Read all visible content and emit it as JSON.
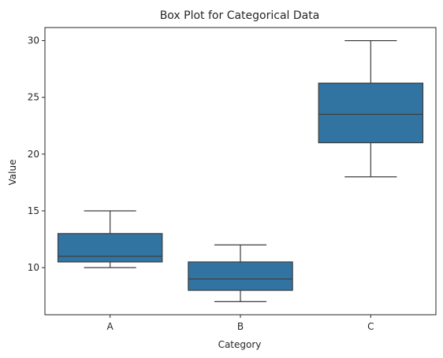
{
  "chart_data": {
    "type": "box",
    "title": "Box Plot for Categorical Data",
    "xlabel": "Category",
    "ylabel": "Value",
    "categories": [
      "A",
      "B",
      "C"
    ],
    "boxes": [
      {
        "category": "A",
        "whisker_low": 10,
        "q1": 10.5,
        "median": 11,
        "q3": 13,
        "whisker_high": 15
      },
      {
        "category": "B",
        "whisker_low": 7,
        "q1": 8,
        "median": 9,
        "q3": 10.5,
        "whisker_high": 12
      },
      {
        "category": "C",
        "whisker_low": 18,
        "q1": 21,
        "median": 23.5,
        "q3": 26.25,
        "whisker_high": 30
      }
    ],
    "ylim": [
      5.85,
      31.15
    ],
    "yticks": [
      10,
      15,
      20,
      25,
      30
    ],
    "grid": false,
    "box_color": "#3274a1",
    "line_color": "#3d3d3d"
  }
}
